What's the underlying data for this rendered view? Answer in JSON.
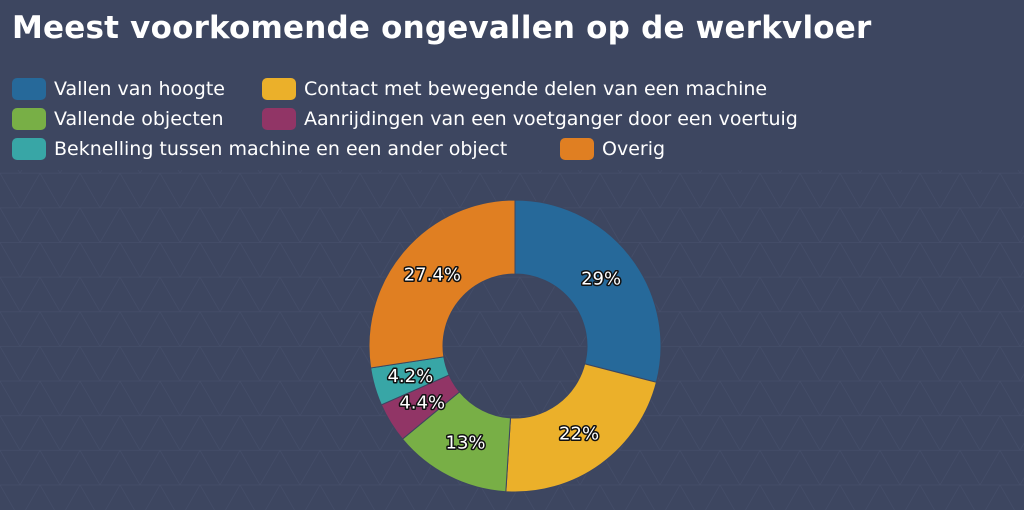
{
  "chart_data": {
    "type": "pie",
    "title": "Meest voorkomende ongevallen op de werkvloer",
    "legend_position": "top",
    "donut": true,
    "slices": [
      {
        "name": "Vallen van hoogte",
        "value": 29,
        "label": "29%",
        "color": "#26699a"
      },
      {
        "name": "Contact met bewegende delen van een machine",
        "value": 22,
        "label": "22%",
        "color": "#ebb02a"
      },
      {
        "name": "Vallende objecten",
        "value": 13,
        "label": "13%",
        "color": "#78af46"
      },
      {
        "name": "Aanrijdingen van een voetganger door een voertuig",
        "value": 4.4,
        "label": "4.4%",
        "color": "#913566"
      },
      {
        "name": "Beknelling tussen machine en een ander object",
        "value": 4.2,
        "label": "4.2%",
        "color": "#38a6a6"
      },
      {
        "name": "Overig",
        "value": 27.4,
        "label": "27.4%",
        "color": "#e07f22"
      }
    ]
  }
}
